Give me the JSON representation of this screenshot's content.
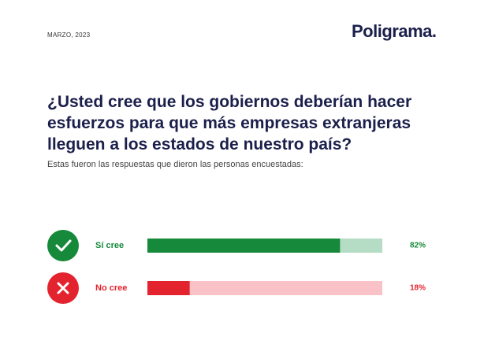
{
  "chart_data": {
    "type": "progress",
    "date": "MARZO, 2023",
    "brand": "Poligrama.",
    "title": "¿Usted cree que los gobiernos deberían hacer esfuerzos para que más empresas extranjeras lleguen a los estados de nuestro país?",
    "subtitle": "Estas fueron las respuestas que dieron las personas encuestadas:",
    "categories": [
      "Sí cree",
      "No cree"
    ],
    "values": [
      82,
      18
    ],
    "value_labels": [
      "82%",
      "18%"
    ],
    "colors": [
      "#16893a",
      "#e3232e"
    ],
    "track_colors": [
      "#b5dcc5",
      "#f8c2c7"
    ],
    "xlim": [
      0,
      100
    ]
  }
}
